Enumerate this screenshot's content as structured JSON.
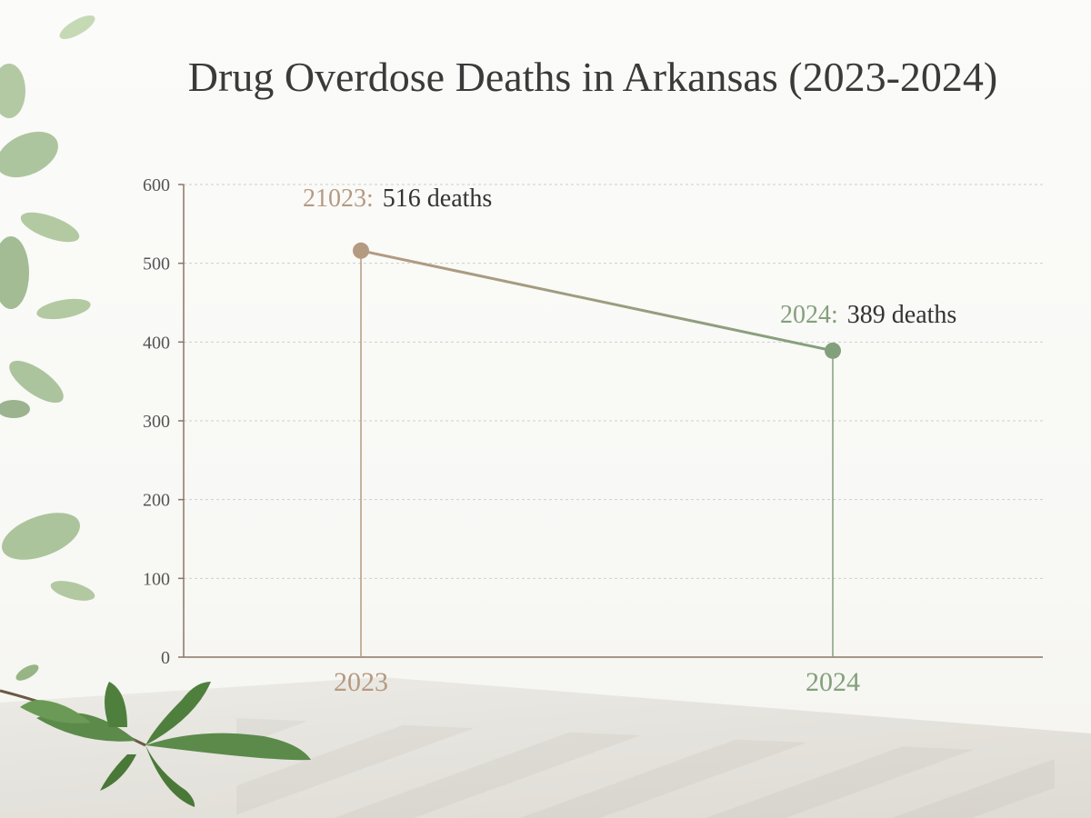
{
  "colors": {
    "series_start": "#b59a82",
    "series_end": "#83a07c",
    "axis": "#8a7565",
    "grid": "#cfcfcf",
    "tick_label": "#555555",
    "title": "#3a3a3a",
    "annotation_text": "#333333",
    "leaf": "#5b8a4a"
  },
  "chart_data": {
    "type": "line",
    "title": "Drug Overdose Deaths in Arkansas (2023-2024)",
    "categories": [
      "2023",
      "2024"
    ],
    "values": [
      516,
      389
    ],
    "ylim": [
      0,
      600
    ],
    "yticks": [
      0,
      100,
      200,
      300,
      400,
      500,
      600
    ],
    "xlabel": "",
    "ylabel": "",
    "grid": true,
    "annotations": [
      {
        "label": "21023:",
        "text": "516 deaths"
      },
      {
        "label": "2024:",
        "text": "389 deaths"
      }
    ]
  }
}
